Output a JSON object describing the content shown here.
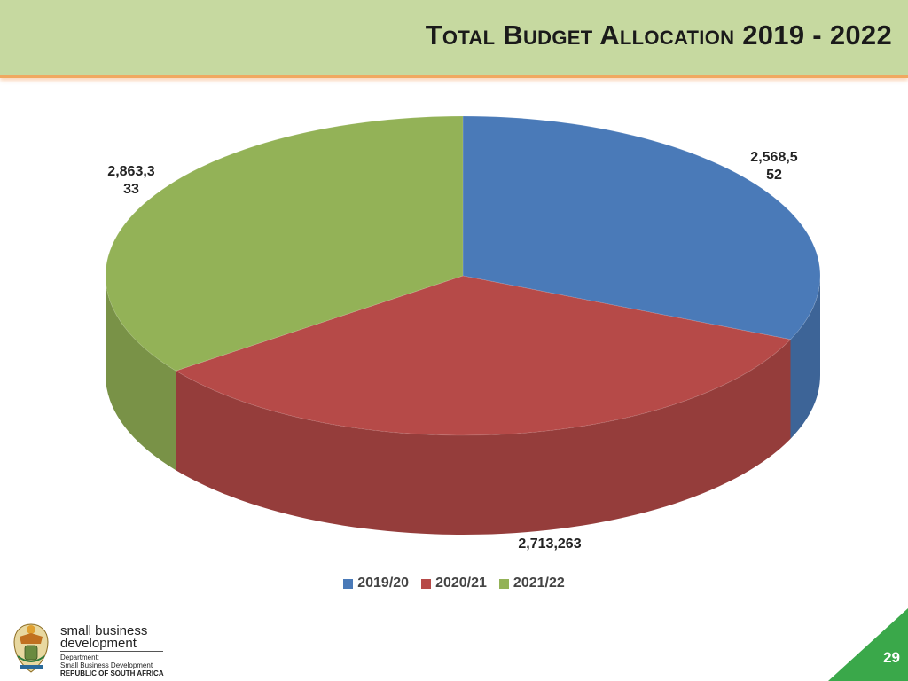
{
  "header": {
    "title": "Total Budget Allocation 2019 - 2022"
  },
  "chart_data": {
    "type": "pie",
    "title": "",
    "categories": [
      "2019/20",
      "2020/21",
      "2021/22"
    ],
    "values": [
      2568552,
      2713263,
      2863333
    ],
    "data_labels": [
      "2,568,552",
      "2,713,263",
      "2,863,333"
    ],
    "colors": [
      "#4a7ab8",
      "#b64a48",
      "#93b257"
    ],
    "legend_position": "bottom",
    "three_d": true
  },
  "footer": {
    "logo_line1": "small business",
    "logo_line2": "development",
    "dept_line1": "Department:",
    "dept_line2": "Small Business Development",
    "dept_line3": "REPUBLIC OF SOUTH AFRICA",
    "page_number": "29"
  }
}
